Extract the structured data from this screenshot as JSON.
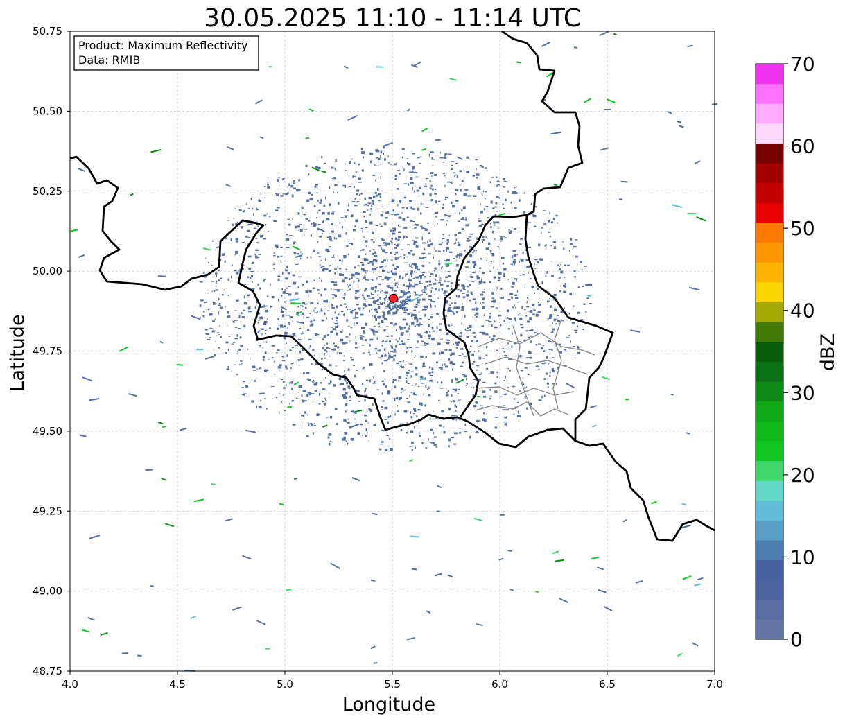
{
  "title": "30.05.2025 11:10 - 11:14 UTC",
  "info": {
    "product": "Product: Maximum Reflectivity",
    "data": "Data: RMIB"
  },
  "colorbar": {
    "label": "dBZ",
    "ticks": [
      "0",
      "10",
      "20",
      "30",
      "40",
      "50",
      "60",
      "70"
    ],
    "range": [
      0,
      70
    ],
    "colors": [
      "#6577a5",
      "#5a6ea3",
      "#4e64a1",
      "#4761a1",
      "#4e7db0",
      "#599ec4",
      "#63bfd8",
      "#63d8c6",
      "#3fd66b",
      "#11c522",
      "#12b91c",
      "#10aa18",
      "#0e8b17",
      "#0b7114",
      "#065c0a",
      "#437a05",
      "#a4aa00",
      "#fbd600",
      "#fdb400",
      "#ff9800",
      "#ff7a00",
      "#e60000",
      "#c10000",
      "#a30000",
      "#780000",
      "#ffd8ff",
      "#ffacff",
      "#ff72ff",
      "#ef32ef"
    ]
  },
  "map": {
    "xlabel": "Longitude",
    "ylabel": "Latitude",
    "xlim": [
      4.0,
      7.0
    ],
    "ylim": [
      48.75,
      50.75
    ],
    "xticks": [
      {
        "value": 4.0,
        "label": "4.0"
      },
      {
        "value": 4.5,
        "label": "4.5"
      },
      {
        "value": 5.0,
        "label": "5.0"
      },
      {
        "value": 5.5,
        "label": "5.5"
      },
      {
        "value": 6.0,
        "label": "6.0"
      },
      {
        "value": 6.5,
        "label": "6.5"
      },
      {
        "value": 7.0,
        "label": "7.0"
      }
    ],
    "yticks": [
      {
        "value": 48.75,
        "label": "48.75"
      },
      {
        "value": 49.0,
        "label": "49.00"
      },
      {
        "value": 49.25,
        "label": "49.25"
      },
      {
        "value": 49.5,
        "label": "49.50"
      },
      {
        "value": 49.75,
        "label": "49.75"
      },
      {
        "value": 50.0,
        "label": "50.00"
      },
      {
        "value": 50.25,
        "label": "50.25"
      },
      {
        "value": 50.5,
        "label": "50.50"
      },
      {
        "value": 50.75,
        "label": "50.75"
      }
    ],
    "grid": true,
    "radar_site": {
      "lon": 5.505,
      "lat": 49.915,
      "color": "#ff2020"
    },
    "clutter_color": "#5470a0",
    "border_color": "#000000",
    "internal_border_color": "#888888"
  }
}
